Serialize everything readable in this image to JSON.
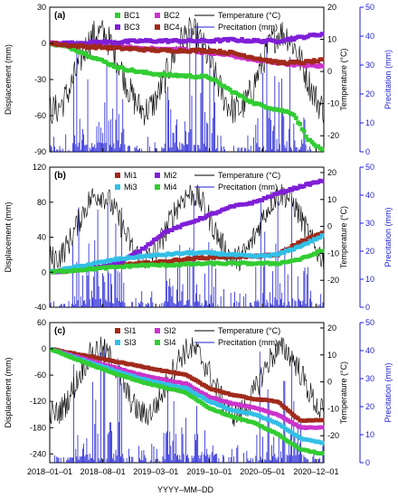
{
  "figure": {
    "xlabel": "YYYY–MM–DD",
    "x_ticks": [
      "2018–01–01",
      "2018–08–01",
      "2019–03–01",
      "2019–10–01",
      "2020–05–01",
      "2020–12–01"
    ]
  },
  "chart_data": [
    {
      "type": "line",
      "panel_label": "(a)",
      "xlabel": "YYYY–MM–DD",
      "x_ticks": [
        "2018-01-01",
        "2018-08-01",
        "2019-03-01",
        "2019-10-01",
        "2020-05-01",
        "2020-12-01"
      ],
      "ylabel": "Displacement (mm)",
      "ylim": [
        -90,
        30
      ],
      "y_ticks": [
        -90,
        -60,
        -30,
        0,
        30
      ],
      "y2label": "Temperature (°C)",
      "y2lim": [
        -25,
        20
      ],
      "y2_ticks": [
        -20,
        -10,
        0,
        10,
        20
      ],
      "y3label": "Precitation (mm)",
      "y3lim": [
        0,
        50
      ],
      "y3_ticks": [
        0,
        10,
        20,
        30,
        40,
        50
      ],
      "legend": [
        "BC1",
        "BC2",
        "BC3",
        "BC4",
        "Temperature (°C)",
        "Precitation (mm)"
      ],
      "series": [
        {
          "name": "BC1",
          "color": "#33cc33",
          "x": [
            "2018-01-01",
            "2018-04-01",
            "2018-07-01",
            "2018-10-01",
            "2019-01-01",
            "2019-04-01",
            "2019-07-01",
            "2019-10-01",
            "2020-01-01",
            "2020-04-01",
            "2020-07-01",
            "2020-09-01",
            "2020-11-01",
            "2020-12-31"
          ],
          "values": [
            0,
            -4,
            -12,
            -20,
            -24,
            -26,
            -27,
            -28,
            -40,
            -50,
            -55,
            -58,
            -80,
            -90
          ]
        },
        {
          "name": "BC2",
          "color": "#cc33cc",
          "x": [
            "2018-01-01",
            "2018-04-01",
            "2018-07-01",
            "2018-10-01",
            "2019-01-01",
            "2019-04-01",
            "2019-07-01",
            "2019-10-01",
            "2020-01-01",
            "2020-04-01",
            "2020-07-01",
            "2020-10-01",
            "2020-12-31"
          ],
          "values": [
            0,
            -1,
            -2,
            -3,
            -4,
            -5,
            -5,
            -8,
            -10,
            -14,
            -16,
            -18,
            -19
          ]
        },
        {
          "name": "BC3",
          "color": "#7f1fd6",
          "x": [
            "2018-01-01",
            "2018-04-01",
            "2018-07-01",
            "2018-10-01",
            "2019-01-01",
            "2019-04-01",
            "2019-07-01",
            "2019-10-01",
            "2020-01-01",
            "2020-04-01",
            "2020-07-01",
            "2020-10-01",
            "2020-12-31"
          ],
          "values": [
            0,
            0,
            1,
            1,
            2,
            2,
            2,
            2,
            3,
            2,
            2,
            5,
            8
          ]
        },
        {
          "name": "BC4",
          "color": "#a02a1a",
          "x": [
            "2018-01-01",
            "2018-04-01",
            "2018-07-01",
            "2018-10-01",
            "2019-01-01",
            "2019-04-01",
            "2019-07-01",
            "2019-10-01",
            "2020-01-01",
            "2020-04-01",
            "2020-07-01",
            "2020-10-01",
            "2020-12-31"
          ],
          "values": [
            0,
            -2,
            -3,
            -4,
            -5,
            -6,
            -6,
            -6,
            -8,
            -12,
            -16,
            -16,
            -14
          ]
        }
      ]
    },
    {
      "type": "line",
      "panel_label": "(b)",
      "xlabel": "YYYY–MM–DD",
      "x_ticks": [
        "2018-01-01",
        "2018-08-01",
        "2019-03-01",
        "2019-10-01",
        "2020-05-01",
        "2020-12-01"
      ],
      "ylabel": "Displacement (mm)",
      "ylim": [
        -40,
        120
      ],
      "y_ticks": [
        -40,
        0,
        40,
        80,
        120
      ],
      "y2label": "Temperature (°C)",
      "y2lim": [
        -30,
        22
      ],
      "y2_ticks": [
        -20,
        -10,
        0,
        10,
        20
      ],
      "y3label": "Precitation (mm)",
      "y3lim": [
        0,
        50
      ],
      "y3_ticks": [
        0,
        10,
        20,
        30,
        40,
        50
      ],
      "legend": [
        "Mi1",
        "Mi2",
        "Mi3",
        "Mi4",
        "Temperature (°C)",
        "Precitation (mm)"
      ],
      "series": [
        {
          "name": "Mi1",
          "color": "#a02a1a",
          "x": [
            "2018-01-01",
            "2018-04-01",
            "2018-07-01",
            "2018-10-01",
            "2019-01-01",
            "2019-04-01",
            "2019-07-01",
            "2019-10-01",
            "2020-01-01",
            "2020-04-01",
            "2020-07-01",
            "2020-10-01",
            "2020-12-31"
          ],
          "values": [
            0,
            2,
            5,
            8,
            10,
            12,
            15,
            17,
            18,
            18,
            20,
            35,
            45
          ]
        },
        {
          "name": "Mi2",
          "color": "#7f1fd6",
          "x": [
            "2018-01-01",
            "2018-04-01",
            "2018-07-01",
            "2018-10-01",
            "2019-01-01",
            "2019-04-01",
            "2019-07-01",
            "2019-10-01",
            "2020-01-01",
            "2020-04-01",
            "2020-07-01",
            "2020-10-01",
            "2020-12-31"
          ],
          "values": [
            0,
            2,
            5,
            10,
            25,
            45,
            55,
            65,
            75,
            80,
            90,
            98,
            105
          ]
        },
        {
          "name": "Mi3",
          "color": "#33bfe6",
          "x": [
            "2018-01-01",
            "2018-04-01",
            "2018-07-01",
            "2018-10-01",
            "2019-01-01",
            "2019-04-01",
            "2019-07-01",
            "2019-10-01",
            "2020-01-01",
            "2020-04-01",
            "2020-07-01",
            "2020-10-01",
            "2020-12-31"
          ],
          "values": [
            0,
            5,
            10,
            15,
            18,
            20,
            22,
            22,
            20,
            18,
            20,
            30,
            42
          ]
        },
        {
          "name": "Mi4",
          "color": "#33cc33",
          "x": [
            "2018-01-01",
            "2018-04-01",
            "2018-07-01",
            "2018-10-01",
            "2019-01-01",
            "2019-04-01",
            "2019-07-01",
            "2019-10-01",
            "2020-01-01",
            "2020-04-01",
            "2020-07-01",
            "2020-10-01",
            "2020-12-31"
          ],
          "values": [
            0,
            2,
            4,
            6,
            8,
            8,
            9,
            10,
            10,
            10,
            10,
            15,
            25
          ]
        }
      ]
    },
    {
      "type": "line",
      "panel_label": "(c)",
      "xlabel": "YYYY–MM–DD",
      "x_ticks": [
        "2018-01-01",
        "2018-08-01",
        "2019-03-01",
        "2019-10-01",
        "2020-05-01",
        "2020-12-01"
      ],
      "ylabel": "Displacement (mm)",
      "ylim": [
        -260,
        60
      ],
      "y_ticks": [
        -240,
        -180,
        -120,
        -60,
        0,
        60
      ],
      "y2label": "Temperature (°C)",
      "y2lim": [
        -30,
        22
      ],
      "y2_ticks": [
        -20,
        -10,
        0,
        10,
        20
      ],
      "y3label": "Precitation (mm)",
      "y3lim": [
        0,
        50
      ],
      "y3_ticks": [
        0,
        10,
        20,
        30,
        40,
        50
      ],
      "legend": [
        "SI1",
        "SI2",
        "SI3",
        "SI4",
        "Temperature (°C)",
        "Precitation (mm)"
      ],
      "series": [
        {
          "name": "SI1",
          "color": "#a02a1a",
          "x": [
            "2018-01-01",
            "2018-04-01",
            "2018-07-01",
            "2018-10-01",
            "2019-01-01",
            "2019-04-01",
            "2019-07-01",
            "2019-10-01",
            "2020-01-01",
            "2020-04-01",
            "2020-07-01",
            "2020-10-01",
            "2020-12-31"
          ],
          "values": [
            0,
            -10,
            -20,
            -30,
            -40,
            -50,
            -60,
            -90,
            -105,
            -115,
            -120,
            -165,
            -162
          ]
        },
        {
          "name": "SI2",
          "color": "#cc33cc",
          "x": [
            "2018-01-01",
            "2018-04-01",
            "2018-07-01",
            "2018-10-01",
            "2019-01-01",
            "2019-04-01",
            "2019-07-01",
            "2019-10-01",
            "2020-01-01",
            "2020-04-01",
            "2020-07-01",
            "2020-10-01",
            "2020-12-31"
          ],
          "values": [
            0,
            -15,
            -30,
            -45,
            -60,
            -70,
            -80,
            -110,
            -125,
            -135,
            -150,
            -180,
            -180
          ]
        },
        {
          "name": "SI3",
          "color": "#33bfe6",
          "x": [
            "2018-01-01",
            "2018-04-01",
            "2018-07-01",
            "2018-10-01",
            "2019-01-01",
            "2019-04-01",
            "2019-07-01",
            "2019-10-01",
            "2020-01-01",
            "2020-04-01",
            "2020-07-01",
            "2020-10-01",
            "2020-12-31"
          ],
          "values": [
            0,
            -18,
            -35,
            -52,
            -68,
            -80,
            -90,
            -120,
            -140,
            -150,
            -170,
            -205,
            -215
          ]
        },
        {
          "name": "SI4",
          "color": "#33cc33",
          "x": [
            "2018-01-01",
            "2018-04-01",
            "2018-07-01",
            "2018-10-01",
            "2019-01-01",
            "2019-04-01",
            "2019-07-01",
            "2019-10-01",
            "2020-01-01",
            "2020-04-01",
            "2020-07-01",
            "2020-10-01",
            "2020-12-31"
          ],
          "values": [
            0,
            -20,
            -40,
            -58,
            -75,
            -88,
            -100,
            -135,
            -155,
            -170,
            -195,
            -230,
            -240
          ]
        }
      ]
    }
  ],
  "colors": {
    "temperature_line": "#000000",
    "precipitation_bars": "#1f1fd6",
    "right_axis": "#1f1fd6"
  }
}
